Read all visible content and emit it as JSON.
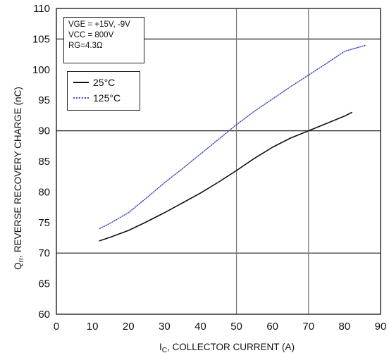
{
  "chart_data": {
    "type": "line",
    "xlabel": "I_C, COLLECTOR CURRENT (A)",
    "xlabel_main": "I",
    "xlabel_sub": "C",
    "xlabel_rest": ", COLLECTOR CURRENT (A)",
    "ylabel": "Q_rr, REVERSE RECOVERY CHARGE (nC)",
    "ylabel_main": "Q",
    "ylabel_sub": "rr",
    "ylabel_rest": ", REVERSE RECOVERY CHARGE (nC)",
    "xlim": [
      0,
      90
    ],
    "ylim": [
      60,
      110
    ],
    "x_ticks": [
      0,
      10,
      20,
      30,
      40,
      50,
      60,
      70,
      80,
      90
    ],
    "y_ticks": [
      60,
      65,
      70,
      75,
      80,
      85,
      90,
      95,
      100,
      105,
      110
    ],
    "gridlines_y": [
      70,
      90,
      105
    ],
    "gridlines_x": [
      50,
      70
    ],
    "conditions": [
      "VGE = +15V, -9V",
      "VCC = 800V",
      "RG=4.3Ω"
    ],
    "legend_placement": "upper-left",
    "series": [
      {
        "name": "25°C",
        "style": "solid",
        "color": "#111111",
        "x": [
          12,
          15,
          20,
          25,
          30,
          35,
          40,
          45,
          50,
          55,
          60,
          65,
          70,
          75,
          80,
          82
        ],
        "y": [
          72,
          72.6,
          73.7,
          75.1,
          76.6,
          78.2,
          79.8,
          81.6,
          83.5,
          85.5,
          87.3,
          88.8,
          90,
          91.2,
          92.4,
          93
        ]
      },
      {
        "name": "125°C",
        "style": "dotted",
        "color": "#3a48d8",
        "x": [
          12,
          15,
          20,
          25,
          30,
          35,
          40,
          45,
          50,
          55,
          60,
          65,
          70,
          75,
          80,
          86
        ],
        "y": [
          74,
          74.9,
          76.6,
          79,
          81.5,
          83.8,
          86.2,
          88.6,
          91,
          93.2,
          95.2,
          97.2,
          99.1,
          101,
          103,
          104
        ]
      }
    ]
  }
}
